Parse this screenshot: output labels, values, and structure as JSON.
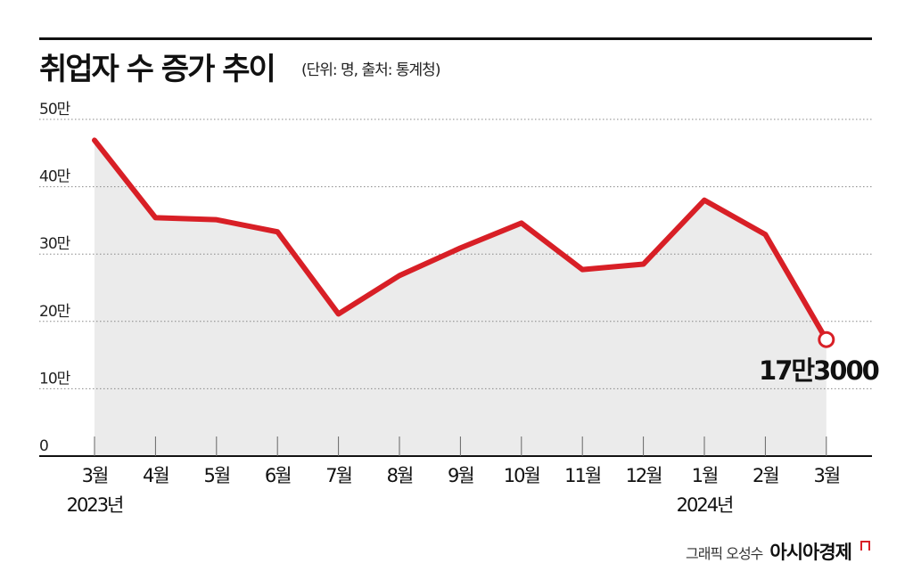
{
  "header": {
    "title": "취업자 수 증가 추이",
    "subtitle": "(단위: 명, 출처: 통계청)"
  },
  "footer": {
    "author": "그래픽 오성수",
    "brand": "아시아경제"
  },
  "colors": {
    "line": "#d81f26",
    "area": "#ebebeb",
    "grid": "#888888",
    "axis": "#111111"
  },
  "chart_data": {
    "type": "area",
    "title": "취업자 수 증가 추이",
    "subtitle": "(단위: 명, 출처: 통계청)",
    "categories": [
      "3월",
      "4월",
      "5월",
      "6월",
      "7월",
      "8월",
      "9월",
      "10월",
      "11월",
      "12월",
      "1월",
      "2월",
      "3월"
    ],
    "year_labels": [
      {
        "index": 0,
        "label": "2023년"
      },
      {
        "index": 10,
        "label": "2024년"
      }
    ],
    "series": [
      {
        "values": [
          469000,
          354000,
          351000,
          333000,
          211000,
          268000,
          309000,
          346000,
          277000,
          285000,
          380000,
          329000,
          173000
        ]
      }
    ],
    "ylim": [
      0,
      500000
    ],
    "yticks": [
      0,
      100000,
      200000,
      300000,
      400000,
      500000
    ],
    "ytick_labels": [
      "0",
      "10만",
      "20만",
      "30만",
      "40만",
      "50만"
    ],
    "annotation": {
      "index": 12,
      "label": "17만3000"
    },
    "grid": "horizontal dotted",
    "legend": "none"
  }
}
